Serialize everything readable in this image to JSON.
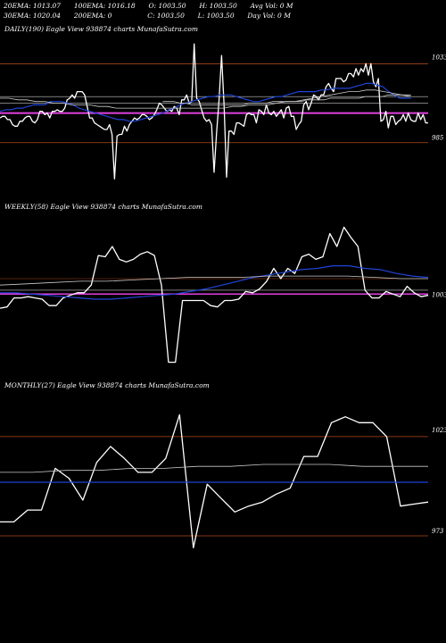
{
  "header": {
    "row1": [
      {
        "label": "20EMA:",
        "value": "1013.07"
      },
      {
        "label": "100EMA:",
        "value": "1016.18"
      },
      {
        "label": "O:",
        "value": "1003.50"
      },
      {
        "label": "H:",
        "value": "1003.50"
      },
      {
        "label": "Avg Vol:",
        "value": "0 M"
      }
    ],
    "row2": [
      {
        "label": "30EMA:",
        "value": "1020.04"
      },
      {
        "label": "200EMA:",
        "value": "0"
      },
      {
        "label": "C:",
        "value": "1003.50"
      },
      {
        "label": "L:",
        "value": "1003.50"
      },
      {
        "label": "Day Vol:",
        "value": "0 M"
      }
    ]
  },
  "panels": [
    {
      "label": "DAILY(190) Eagle  View  938874  charts MunafaSutra.com",
      "ytop": "1033",
      "ybottom": "985"
    },
    {
      "label": "WEEKLY(58) Eagle  View  938874  charts MunafaSutra.com",
      "ytop": "",
      "ybottom": "1003"
    },
    {
      "label": "MONTHLY(27) Eagle  View  938874  charts MunafaSutra.com",
      "ytop": "1023",
      "ybottom": "973"
    }
  ],
  "colors": {
    "background": "#000000",
    "price": "#ffffff",
    "ema_fast": "#1f44d6",
    "ema_slow": "#c8c8c8",
    "level_line": "#b34a1a",
    "magenta": "#e040e0"
  },
  "chart_data": [
    {
      "type": "line",
      "timeframe": "DAILY",
      "y_tick_labels": [
        "1033",
        "985"
      ],
      "series": [
        {
          "values": [
            1000,
            1001,
            1001,
            999,
            999,
            996,
            995,
            995,
            998,
            998,
            1000,
            1001,
            1001,
            998,
            997,
            999,
            1004,
            1004,
            1002,
            1003,
            1000,
            1004,
            1004,
            1005,
            1004,
            1004,
            1006,
            1011,
            1012,
            1014,
            1012,
            1016,
            1016,
            1016,
            1014,
            1007,
            1000,
            1000,
            997,
            996,
            995,
            994,
            993,
            993,
            996,
            990,
            963,
            989,
            990,
            990,
            995,
            992,
            996,
            998,
            1000,
            999,
            1000,
            1002,
            1002,
            1001,
            999,
            1000,
            1002,
            1005,
            1009,
            1008,
            1006,
            1004,
            1005,
            1004,
            1007,
            1006,
            1002,
            1011,
            1011,
            1014,
            1009,
            1010,
            1045,
            1012,
            1010,
            1005,
            1000,
            998,
            999,
            996,
            967,
            991,
            1011,
            1038,
            1008,
            964,
            992,
            992,
            990,
            997,
            997,
            996,
            995,
            1002,
            1003,
            1002,
            1002,
            997,
            1005,
            1004,
            1002,
            1008,
            1003,
            1002,
            1004,
            1001,
            1003,
            1005,
            1000,
            1006,
            1007,
            1001,
            1001,
            993,
            996,
            998,
            1008,
            1010,
            1005,
            1009,
            1014,
            1013,
            1011,
            1014,
            1014,
            1019,
            1021,
            1018,
            1016,
            1024,
            1024,
            1024,
            1022,
            1023,
            1027,
            1027,
            1025,
            1030,
            1026,
            1030,
            1028,
            1033,
            1026,
            1033,
            1022,
            1019,
            1024,
            998,
            999,
            1004,
            994,
            1001,
            1001,
            996,
            998,
            999,
            1002,
            998,
            1003,
            999,
            998,
            998,
            1003,
            999,
            1002,
            997,
            997
          ]
        },
        {
          "values": [
            1004,
            1005,
            1005,
            1006,
            1006,
            1007,
            1008,
            1008,
            1008,
            1010,
            1010,
            1010,
            1009,
            1008,
            1006,
            1005,
            1004,
            1003,
            1002,
            1001,
            1000,
            999,
            999,
            998,
            998,
            999,
            1000,
            1001,
            1002,
            1003,
            1005,
            1006,
            1008,
            1009,
            1010,
            1011,
            1012,
            1013,
            1013,
            1014,
            1014,
            1014,
            1013,
            1012,
            1011,
            1010,
            1010,
            1011,
            1012,
            1013,
            1013,
            1014,
            1015,
            1016,
            1016,
            1016,
            1016,
            1017,
            1017,
            1018,
            1018,
            1018,
            1018,
            1019,
            1020,
            1021,
            1021,
            1020,
            1019,
            1016,
            1014,
            1012,
            1012,
            1012
          ]
        },
        {
          "values": [
            1012,
            1012,
            1011,
            1011,
            1010,
            1010,
            1009,
            1009,
            1008,
            1008,
            1008,
            1007,
            1007,
            1006,
            1006,
            1006,
            1006,
            1006,
            1006,
            1006,
            1006,
            1006,
            1006,
            1006,
            1006,
            1006,
            1007,
            1007,
            1008,
            1008,
            1008,
            1009,
            1010,
            1010,
            1011,
            1012,
            1013,
            1014,
            1015,
            1016,
            1016,
            1017,
            1017,
            1016,
            1015,
            1014,
            1013
          ]
        },
        {
          "values": [
            1010,
            1010,
            1010,
            1009,
            1009,
            1008,
            1008,
            1008,
            1008,
            1008,
            1008,
            1008,
            1008,
            1008,
            1008,
            1009,
            1009,
            1009,
            1009,
            1010,
            1010,
            1010,
            1010,
            1010,
            1010,
            1011,
            1011,
            1011,
            1011,
            1012,
            1012,
            1012,
            1012,
            1012,
            1012,
            1013,
            1013,
            1013,
            1013,
            1014,
            1014,
            1014,
            1014,
            1014
          ]
        }
      ],
      "levels": [
        1033,
        1013,
        1009,
        1003,
        985
      ]
    },
    {
      "type": "line",
      "timeframe": "WEEKLY",
      "y_tick_labels": [
        "1003"
      ],
      "series": [
        {
          "values": [
            992,
            993,
            1000,
            1000,
            1001,
            1000,
            999,
            994,
            994,
            1000,
            1002,
            1004,
            1004,
            1010,
            1033,
            1032,
            1040,
            1030,
            1028,
            1030,
            1034,
            1036,
            1033,
            1010,
            950,
            950,
            998,
            998,
            998,
            998,
            994,
            993,
            998,
            998,
            999,
            1005,
            1004,
            1007,
            1013,
            1023,
            1015,
            1023,
            1019,
            1032,
            1034,
            1030,
            1032,
            1050,
            1040,
            1055,
            1047,
            1040,
            1006,
            1000,
            1000,
            1005,
            1003,
            1001,
            1009,
            1004,
            1001,
            1002
          ]
        },
        {
          "values": [
            1004,
            1004,
            1003,
            1002,
            1001,
            1000,
            999,
            999,
            1000,
            1001,
            1002,
            1003,
            1005,
            1007,
            1010,
            1013,
            1016,
            1018,
            1020,
            1022,
            1023,
            1025,
            1025,
            1023,
            1022,
            1019,
            1017,
            1016
          ]
        },
        {
          "values": [
            1010,
            1011,
            1012,
            1013,
            1013,
            1014,
            1015,
            1016,
            1016,
            1016,
            1017,
            1017,
            1017,
            1017,
            1016,
            1015,
            1015
          ]
        }
      ],
      "levels": [
        1003,
        1006,
        1015
      ]
    },
    {
      "type": "line",
      "timeframe": "MONTHLY",
      "y_tick_labels": [
        "1023",
        "973"
      ],
      "series": [
        {
          "values": [
            980,
            980,
            986,
            986,
            1007,
            1002,
            991,
            1010,
            1018,
            1012,
            1005,
            1005,
            1012,
            1034,
            967,
            999,
            992,
            985,
            988,
            990,
            994,
            997,
            1013,
            1013,
            1030,
            1033,
            1030,
            1030,
            1023,
            988,
            989,
            990
          ]
        },
        {
          "values": [
            1000,
            1000,
            1000,
            1000,
            1000,
            1000,
            1000,
            1000,
            1000,
            1000,
            1000,
            1000,
            1000,
            1000
          ]
        },
        {
          "values": [
            1005,
            1005,
            1006,
            1006,
            1007,
            1007,
            1008,
            1008,
            1009,
            1009,
            1009,
            1008,
            1008,
            1008
          ]
        }
      ],
      "levels": [
        1023,
        973
      ]
    }
  ]
}
